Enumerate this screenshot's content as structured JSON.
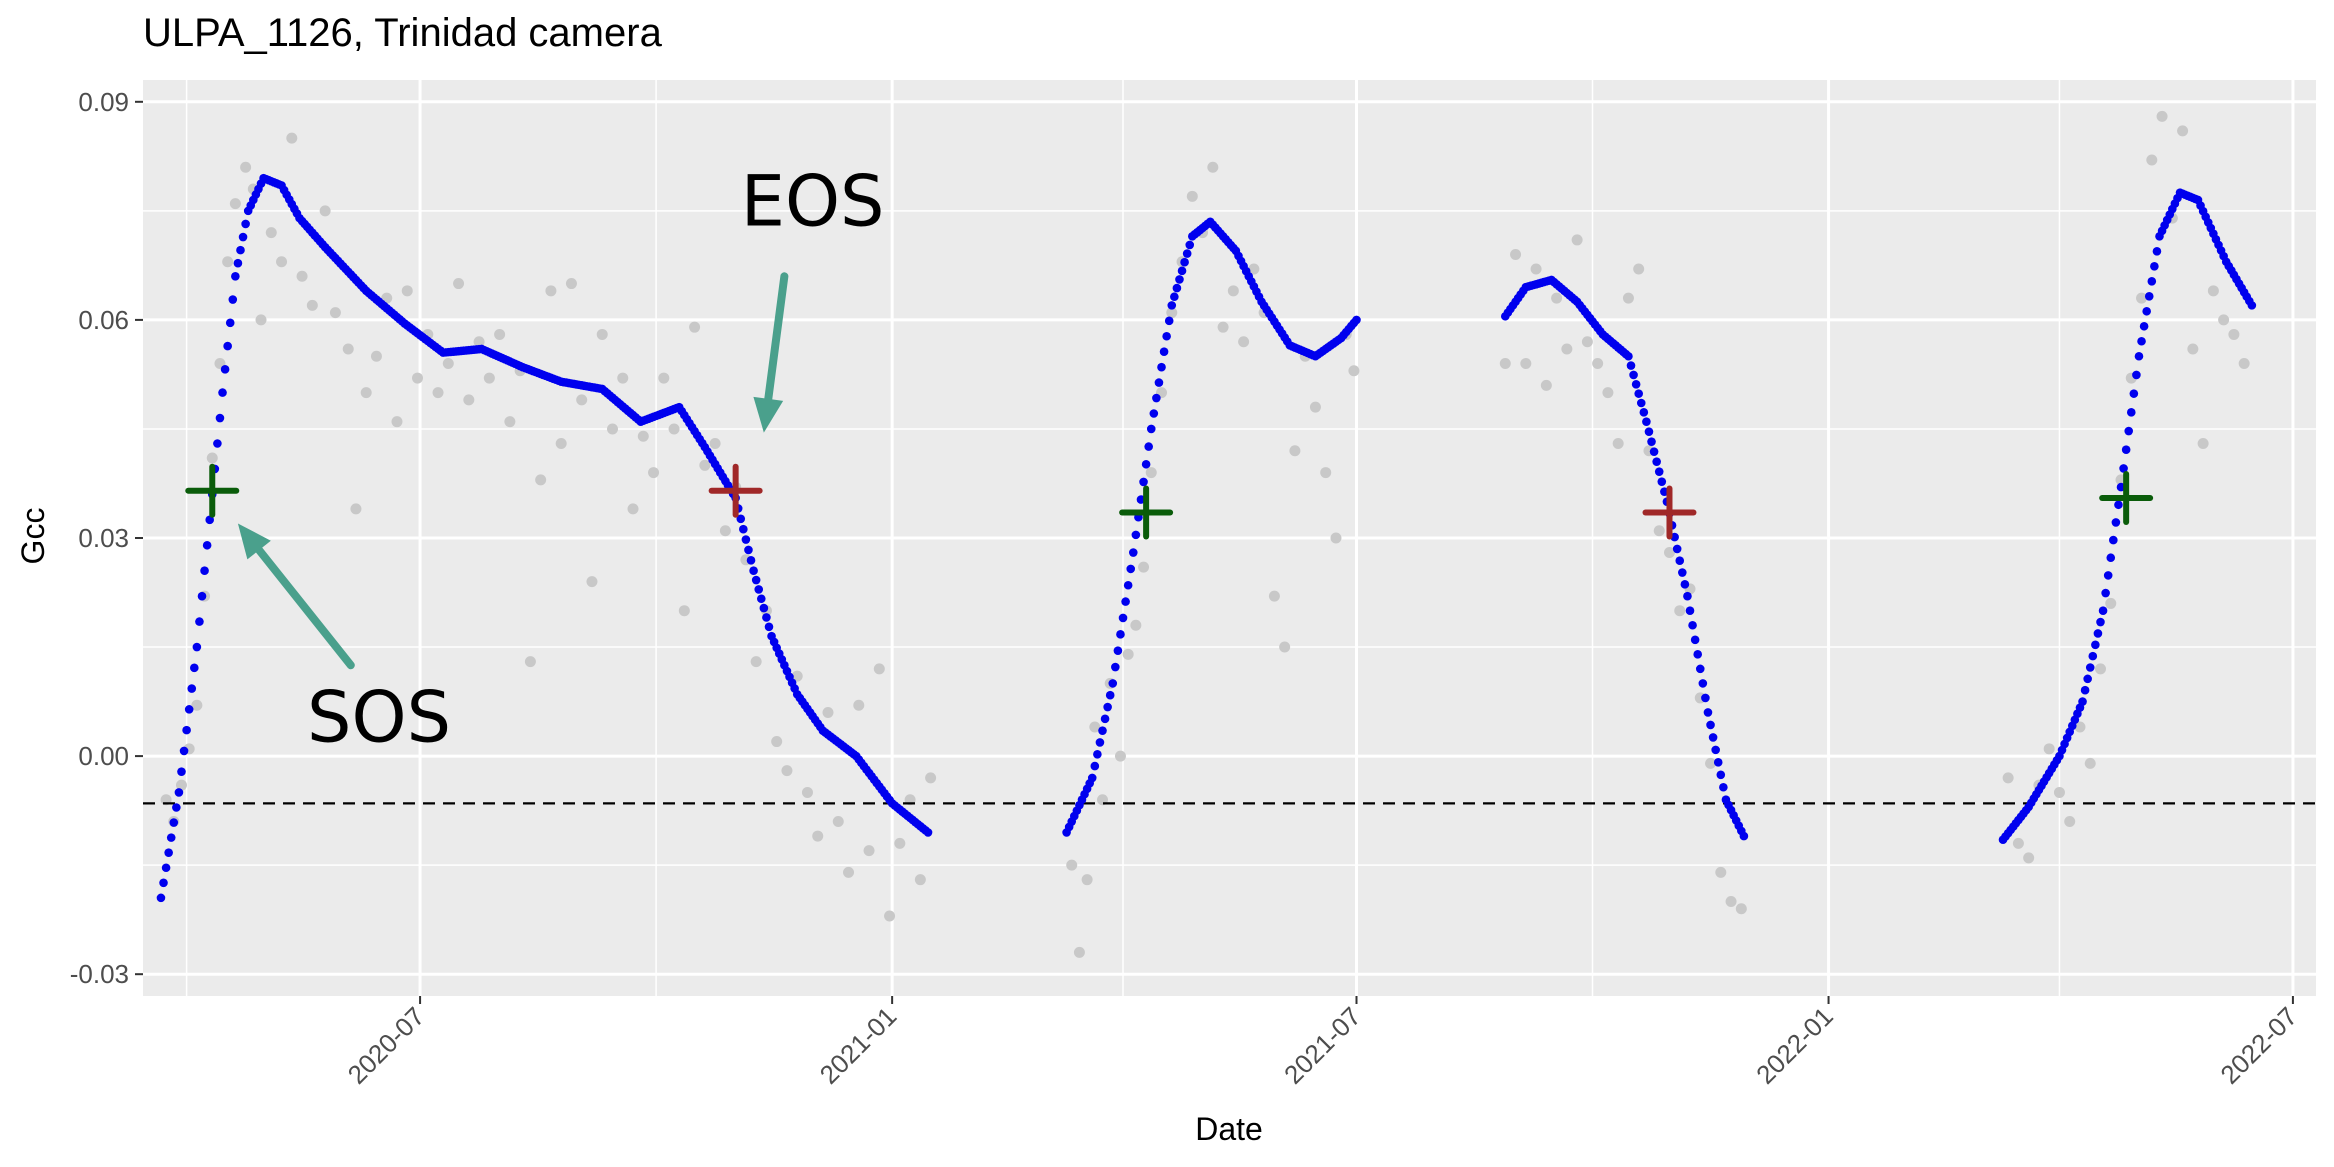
{
  "chart_data": {
    "type": "scatter",
    "title": "ULPA_1126, Trinidad camera",
    "xlabel": "Date",
    "ylabel": "Gcc",
    "xlim": [
      "2020-03-15",
      "2022-07-10"
    ],
    "ylim": [
      -0.033,
      0.093
    ],
    "x_ticks": [
      {
        "date": "2020-07-01",
        "label": "2020-07"
      },
      {
        "date": "2021-01-01",
        "label": "2021-01"
      },
      {
        "date": "2021-07-01",
        "label": "2021-07"
      },
      {
        "date": "2022-01-01",
        "label": "2022-01"
      },
      {
        "date": "2022-07-01",
        "label": "2022-07"
      }
    ],
    "x_minor_ticks": [
      "2020-04-01",
      "2020-10-01",
      "2021-04-01",
      "2021-10-01",
      "2022-04-01"
    ],
    "y_ticks": [
      {
        "value": -0.03,
        "label": "-0.03"
      },
      {
        "value": 0.0,
        "label": "0.00"
      },
      {
        "value": 0.03,
        "label": "0.03"
      },
      {
        "value": 0.06,
        "label": "0.06"
      },
      {
        "value": 0.09,
        "label": "0.09"
      }
    ],
    "y_minor_ticks": [
      -0.015,
      0.015,
      0.045,
      0.075
    ],
    "grid": true,
    "colors": {
      "panel": "#ebebeb",
      "grid": "#ffffff",
      "raw_points": "#c8c8c8",
      "smoothed": "#0000ee",
      "sos_marker": "#0a5c0a",
      "eos_marker": "#a02828",
      "arrow": "#4aa08c",
      "threshold": "#000000"
    },
    "threshold_line": {
      "y": -0.0065,
      "style": "dashed"
    },
    "series": [
      {
        "kind": "smoothed",
        "segments": [
          [
            [
              "2020-03-22",
              -0.0195
            ],
            [
              "2020-03-29",
              -0.005
            ],
            [
              "2020-04-05",
              0.015
            ],
            [
              "2020-04-10",
              0.0325
            ],
            [
              "2020-04-15",
              0.05
            ],
            [
              "2020-04-20",
              0.066
            ],
            [
              "2020-04-25",
              0.075
            ],
            [
              "2020-05-01",
              0.0795
            ],
            [
              "2020-05-08",
              0.0785
            ],
            [
              "2020-05-15",
              0.074
            ],
            [
              "2020-05-25",
              0.07
            ],
            [
              "2020-06-10",
              0.064
            ],
            [
              "2020-06-25",
              0.0595
            ],
            [
              "2020-07-10",
              0.0555
            ],
            [
              "2020-07-25",
              0.056
            ],
            [
              "2020-08-10",
              0.0535
            ],
            [
              "2020-08-25",
              0.0515
            ],
            [
              "2020-09-10",
              0.0505
            ],
            [
              "2020-09-25",
              0.046
            ],
            [
              "2020-10-10",
              0.048
            ],
            [
              "2020-10-20",
              0.0425
            ],
            [
              "2020-11-01",
              0.0355
            ],
            [
              "2020-11-08",
              0.0255
            ],
            [
              "2020-11-15",
              0.0165
            ],
            [
              "2020-11-25",
              0.0085
            ],
            [
              "2020-12-05",
              0.0035
            ],
            [
              "2020-12-18",
              0.0
            ],
            [
              "2021-01-01",
              -0.0065
            ],
            [
              "2021-01-15",
              -0.0105
            ]
          ],
          [
            [
              "2021-03-10",
              -0.0105
            ],
            [
              "2021-03-20",
              -0.003
            ],
            [
              "2021-03-28",
              0.01
            ],
            [
              "2021-04-05",
              0.028
            ],
            [
              "2021-04-12",
              0.045
            ],
            [
              "2021-04-20",
              0.062
            ],
            [
              "2021-04-28",
              0.0715
            ],
            [
              "2021-05-05",
              0.0735
            ],
            [
              "2021-05-15",
              0.0695
            ],
            [
              "2021-05-25",
              0.0625
            ],
            [
              "2021-06-05",
              0.0565
            ],
            [
              "2021-06-15",
              0.055
            ],
            [
              "2021-06-25",
              0.0575
            ],
            [
              "2021-07-01",
              0.06
            ]
          ],
          [
            [
              "2021-08-28",
              0.0605
            ],
            [
              "2021-09-05",
              0.0645
            ],
            [
              "2021-09-15",
              0.0655
            ],
            [
              "2021-09-25",
              0.0625
            ],
            [
              "2021-10-05",
              0.058
            ],
            [
              "2021-10-15",
              0.055
            ],
            [
              "2021-10-22",
              0.046
            ],
            [
              "2021-10-30",
              0.035
            ],
            [
              "2021-11-07",
              0.022
            ],
            [
              "2021-11-15",
              0.006
            ],
            [
              "2021-11-22",
              -0.006
            ],
            [
              "2021-11-29",
              -0.011
            ]
          ],
          [
            [
              "2022-03-10",
              -0.0115
            ],
            [
              "2022-03-20",
              -0.007
            ],
            [
              "2022-04-01",
              0.0
            ],
            [
              "2022-04-10",
              0.0075
            ],
            [
              "2022-04-18",
              0.02
            ],
            [
              "2022-04-25",
              0.037
            ],
            [
              "2022-05-02",
              0.055
            ],
            [
              "2022-05-10",
              0.0715
            ],
            [
              "2022-05-18",
              0.0775
            ],
            [
              "2022-05-25",
              0.0765
            ],
            [
              "2022-06-05",
              0.068
            ],
            [
              "2022-06-15",
              0.062
            ]
          ]
        ]
      },
      {
        "kind": "raw",
        "points": [
          [
            "2020-03-24",
            -0.006
          ],
          [
            "2020-03-27",
            -0.009
          ],
          [
            "2020-03-30",
            -0.004
          ],
          [
            "2020-04-02",
            0.001
          ],
          [
            "2020-04-05",
            0.007
          ],
          [
            "2020-04-08",
            0.022
          ],
          [
            "2020-04-11",
            0.041
          ],
          [
            "2020-04-14",
            0.054
          ],
          [
            "2020-04-17",
            0.068
          ],
          [
            "2020-04-20",
            0.076
          ],
          [
            "2020-04-24",
            0.081
          ],
          [
            "2020-04-27",
            0.078
          ],
          [
            "2020-04-30",
            0.06
          ],
          [
            "2020-05-04",
            0.072
          ],
          [
            "2020-05-08",
            0.068
          ],
          [
            "2020-05-12",
            0.085
          ],
          [
            "2020-05-16",
            0.066
          ],
          [
            "2020-05-20",
            0.062
          ],
          [
            "2020-05-25",
            0.075
          ],
          [
            "2020-05-29",
            0.061
          ],
          [
            "2020-06-03",
            0.056
          ],
          [
            "2020-06-06",
            0.034
          ],
          [
            "2020-06-10",
            0.05
          ],
          [
            "2020-06-14",
            0.055
          ],
          [
            "2020-06-18",
            0.063
          ],
          [
            "2020-06-22",
            0.046
          ],
          [
            "2020-06-26",
            0.064
          ],
          [
            "2020-06-30",
            0.052
          ],
          [
            "2020-07-04",
            0.058
          ],
          [
            "2020-07-08",
            0.05
          ],
          [
            "2020-07-12",
            0.054
          ],
          [
            "2020-07-16",
            0.065
          ],
          [
            "2020-07-20",
            0.049
          ],
          [
            "2020-07-24",
            0.057
          ],
          [
            "2020-07-28",
            0.052
          ],
          [
            "2020-08-01",
            0.058
          ],
          [
            "2020-08-05",
            0.046
          ],
          [
            "2020-08-09",
            0.053
          ],
          [
            "2020-08-13",
            0.013
          ],
          [
            "2020-08-17",
            0.038
          ],
          [
            "2020-08-21",
            0.064
          ],
          [
            "2020-08-25",
            0.043
          ],
          [
            "2020-08-29",
            0.065
          ],
          [
            "2020-09-02",
            0.049
          ],
          [
            "2020-09-06",
            0.024
          ],
          [
            "2020-09-10",
            0.058
          ],
          [
            "2020-09-14",
            0.045
          ],
          [
            "2020-09-18",
            0.052
          ],
          [
            "2020-09-22",
            0.034
          ],
          [
            "2020-09-26",
            0.044
          ],
          [
            "2020-09-30",
            0.039
          ],
          [
            "2020-10-04",
            0.052
          ],
          [
            "2020-10-08",
            0.045
          ],
          [
            "2020-10-12",
            0.02
          ],
          [
            "2020-10-16",
            0.059
          ],
          [
            "2020-10-20",
            0.04
          ],
          [
            "2020-10-24",
            0.043
          ],
          [
            "2020-10-28",
            0.031
          ],
          [
            "2020-11-01",
            0.037
          ],
          [
            "2020-11-05",
            0.027
          ],
          [
            "2020-11-09",
            0.013
          ],
          [
            "2020-11-13",
            0.02
          ],
          [
            "2020-11-17",
            0.002
          ],
          [
            "2020-11-21",
            -0.002
          ],
          [
            "2020-11-25",
            0.011
          ],
          [
            "2020-11-29",
            -0.005
          ],
          [
            "2020-12-03",
            -0.011
          ],
          [
            "2020-12-07",
            0.006
          ],
          [
            "2020-12-11",
            -0.009
          ],
          [
            "2020-12-15",
            -0.016
          ],
          [
            "2020-12-19",
            0.007
          ],
          [
            "2020-12-23",
            -0.013
          ],
          [
            "2020-12-27",
            0.012
          ],
          [
            "2020-12-31",
            -0.022
          ],
          [
            "2021-01-04",
            -0.012
          ],
          [
            "2021-01-08",
            -0.006
          ],
          [
            "2021-01-12",
            -0.017
          ],
          [
            "2021-01-16",
            -0.003
          ],
          [
            "2021-03-12",
            -0.015
          ],
          [
            "2021-03-15",
            -0.027
          ],
          [
            "2021-03-18",
            -0.017
          ],
          [
            "2021-03-21",
            0.004
          ],
          [
            "2021-03-24",
            -0.006
          ],
          [
            "2021-03-27",
            0.01
          ],
          [
            "2021-03-31",
            0.0
          ],
          [
            "2021-04-03",
            0.014
          ],
          [
            "2021-04-06",
            0.018
          ],
          [
            "2021-04-09",
            0.026
          ],
          [
            "2021-04-12",
            0.039
          ],
          [
            "2021-04-16",
            0.05
          ],
          [
            "2021-04-20",
            0.061
          ],
          [
            "2021-04-24",
            0.068
          ],
          [
            "2021-04-28",
            0.077
          ],
          [
            "2021-05-02",
            0.072
          ],
          [
            "2021-05-06",
            0.081
          ],
          [
            "2021-05-10",
            0.059
          ],
          [
            "2021-05-14",
            0.064
          ],
          [
            "2021-05-18",
            0.057
          ],
          [
            "2021-05-22",
            0.067
          ],
          [
            "2021-05-26",
            0.061
          ],
          [
            "2021-05-30",
            0.022
          ],
          [
            "2021-06-03",
            0.015
          ],
          [
            "2021-06-07",
            0.042
          ],
          [
            "2021-06-11",
            0.055
          ],
          [
            "2021-06-15",
            0.048
          ],
          [
            "2021-06-19",
            0.039
          ],
          [
            "2021-06-23",
            0.03
          ],
          [
            "2021-06-27",
            0.058
          ],
          [
            "2021-06-30",
            0.053
          ],
          [
            "2021-08-28",
            0.054
          ],
          [
            "2021-09-01",
            0.069
          ],
          [
            "2021-09-05",
            0.054
          ],
          [
            "2021-09-09",
            0.067
          ],
          [
            "2021-09-13",
            0.051
          ],
          [
            "2021-09-17",
            0.063
          ],
          [
            "2021-09-21",
            0.056
          ],
          [
            "2021-09-25",
            0.071
          ],
          [
            "2021-09-29",
            0.057
          ],
          [
            "2021-10-03",
            0.054
          ],
          [
            "2021-10-07",
            0.05
          ],
          [
            "2021-10-11",
            0.043
          ],
          [
            "2021-10-15",
            0.063
          ],
          [
            "2021-10-19",
            0.067
          ],
          [
            "2021-10-23",
            0.042
          ],
          [
            "2021-10-27",
            0.031
          ],
          [
            "2021-10-31",
            0.028
          ],
          [
            "2021-11-04",
            0.02
          ],
          [
            "2021-11-08",
            0.023
          ],
          [
            "2021-11-12",
            0.008
          ],
          [
            "2021-11-16",
            -0.001
          ],
          [
            "2021-11-20",
            -0.016
          ],
          [
            "2021-11-24",
            -0.02
          ],
          [
            "2021-11-28",
            -0.021
          ],
          [
            "2022-03-12",
            -0.003
          ],
          [
            "2022-03-16",
            -0.012
          ],
          [
            "2022-03-20",
            -0.014
          ],
          [
            "2022-03-24",
            -0.004
          ],
          [
            "2022-03-28",
            0.001
          ],
          [
            "2022-04-01",
            -0.005
          ],
          [
            "2022-04-05",
            -0.009
          ],
          [
            "2022-04-09",
            0.004
          ],
          [
            "2022-04-13",
            -0.001
          ],
          [
            "2022-04-17",
            0.012
          ],
          [
            "2022-04-21",
            0.021
          ],
          [
            "2022-04-25",
            0.038
          ],
          [
            "2022-04-29",
            0.052
          ],
          [
            "2022-05-03",
            0.063
          ],
          [
            "2022-05-07",
            0.082
          ],
          [
            "2022-05-11",
            0.088
          ],
          [
            "2022-05-15",
            0.074
          ],
          [
            "2022-05-19",
            0.086
          ],
          [
            "2022-05-23",
            0.056
          ],
          [
            "2022-05-27",
            0.043
          ],
          [
            "2022-05-31",
            0.064
          ],
          [
            "2022-06-04",
            0.06
          ],
          [
            "2022-06-08",
            0.058
          ],
          [
            "2022-06-12",
            0.054
          ]
        ]
      }
    ],
    "markers": [
      {
        "type": "SOS",
        "date": "2020-04-11",
        "value": 0.0365,
        "color": "#0a5c0a"
      },
      {
        "type": "EOS",
        "date": "2020-11-01",
        "value": 0.0365,
        "color": "#a02828"
      },
      {
        "type": "SOS",
        "date": "2021-04-10",
        "value": 0.0335,
        "color": "#0a5c0a"
      },
      {
        "type": "EOS",
        "date": "2021-10-31",
        "value": 0.0335,
        "color": "#a02828"
      },
      {
        "type": "SOS",
        "date": "2022-04-27",
        "value": 0.0355,
        "color": "#0a5c0a"
      }
    ],
    "annotations": [
      {
        "text": "EOS",
        "text_at": [
          "2020-12-01",
          0.073
        ],
        "arrow_from": [
          "2020-11-20",
          0.066
        ],
        "arrow_to": [
          "2020-11-12",
          0.0445
        ]
      },
      {
        "text": "SOS",
        "text_at": [
          "2020-06-15",
          0.002
        ],
        "arrow_from": [
          "2020-06-04",
          0.0125
        ],
        "arrow_to": [
          "2020-04-21",
          0.032
        ]
      }
    ]
  }
}
